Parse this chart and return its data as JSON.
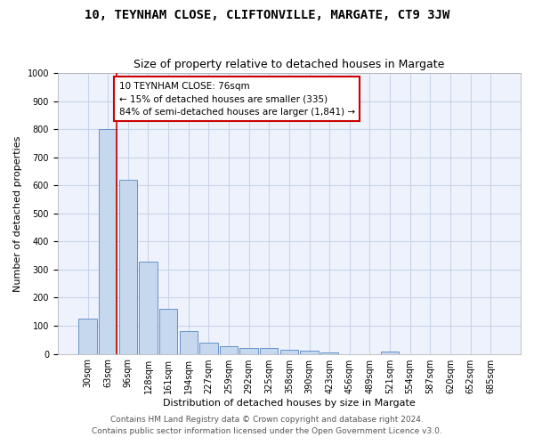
{
  "title_line1": "10, TEYNHAM CLOSE, CLIFTONVILLE, MARGATE, CT9 3JW",
  "title_line2": "Size of property relative to detached houses in Margate",
  "xlabel": "Distribution of detached houses by size in Margate",
  "ylabel": "Number of detached properties",
  "categories": [
    "30sqm",
    "63sqm",
    "96sqm",
    "128sqm",
    "161sqm",
    "194sqm",
    "227sqm",
    "259sqm",
    "292sqm",
    "325sqm",
    "358sqm",
    "390sqm",
    "423sqm",
    "456sqm",
    "489sqm",
    "521sqm",
    "554sqm",
    "587sqm",
    "620sqm",
    "652sqm",
    "685sqm"
  ],
  "values": [
    125,
    800,
    620,
    328,
    160,
    80,
    40,
    27,
    22,
    20,
    15,
    10,
    5,
    0,
    0,
    8,
    0,
    0,
    0,
    0,
    0
  ],
  "bar_color": "#c5d8ee",
  "bar_edge_color": "#5585c5",
  "grid_color": "#c8d4e8",
  "background_color": "#eef2fc",
  "vline_x": 1.42,
  "vline_color": "#cc0000",
  "annotation_text": "10 TEYNHAM CLOSE: 76sqm\n← 15% of detached houses are smaller (335)\n84% of semi-detached houses are larger (1,841) →",
  "annotation_box_color": "#ffffff",
  "annotation_box_edge": "#cc0000",
  "ylim": [
    0,
    1000
  ],
  "yticks": [
    0,
    100,
    200,
    300,
    400,
    500,
    600,
    700,
    800,
    900,
    1000
  ],
  "footer_line1": "Contains HM Land Registry data © Crown copyright and database right 2024.",
  "footer_line2": "Contains public sector information licensed under the Open Government Licence v3.0.",
  "title_fontsize": 10,
  "subtitle_fontsize": 9,
  "axis_label_fontsize": 8,
  "tick_fontsize": 7,
  "annotation_fontsize": 7.5,
  "footer_fontsize": 6.5
}
